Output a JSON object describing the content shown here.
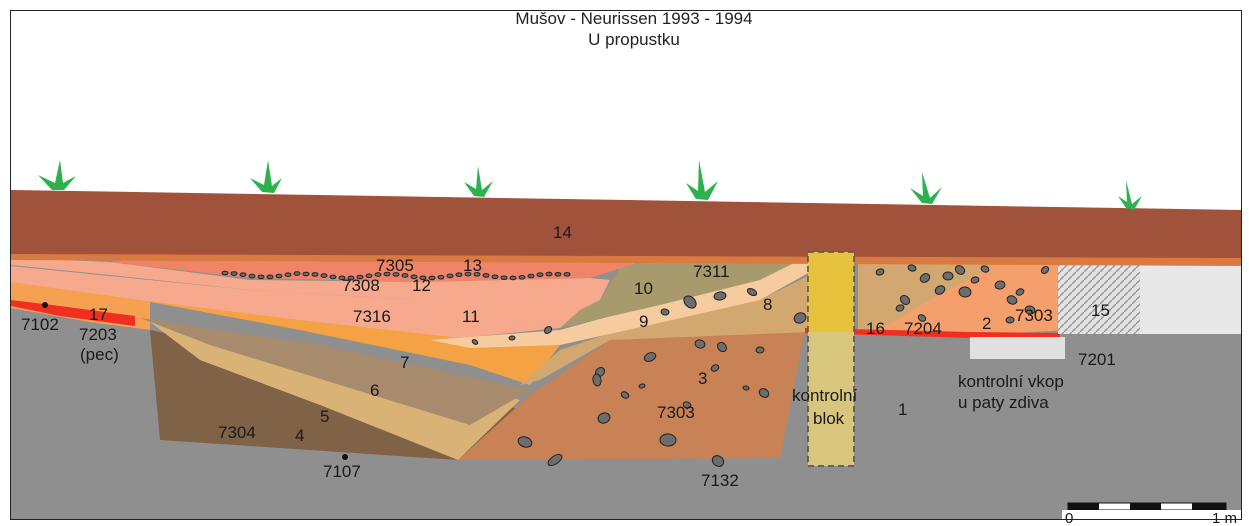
{
  "title": {
    "line1": "Mušov - Neurissen 1993 - 1994",
    "line2": "U propustku"
  },
  "colors": {
    "topsoil": "#a0523a",
    "subsoil": "#8f8f8f",
    "layer_7": "#f4a243",
    "layer_6": "#a88a6c",
    "layer_5": "#d9b275",
    "layer_4": "#806347",
    "layer_3": "#c98255",
    "layer_8": "#d3a870",
    "layer_9": "#f6cc9e",
    "layer_10": "#a79a6c",
    "layer_11": "#f6a98d",
    "layer_12": "#ef8468",
    "layer_2": "#f5a06c",
    "control_block": "#d8c67c",
    "wall": "#e0e0e0",
    "burnt": "#ee2f22",
    "grass": "#2db14f"
  },
  "labels": {
    "l14": "14",
    "l7305": "7305",
    "l13": "13",
    "l7308": "7308",
    "l12": "12",
    "l7311": "7311",
    "l10": "10",
    "l7316": "7316",
    "l11": "11",
    "l9": "9",
    "l8": "8",
    "l17": "17",
    "l7102": "7102",
    "l7203": "7203",
    "lpec": "(pec)",
    "l7": "7",
    "l6": "6",
    "l5": "5",
    "l4": "4",
    "l7304": "7304",
    "l7107": "7107",
    "l3": "3",
    "l7303a": "7303",
    "l7132": "7132",
    "kontrolni": "kontrolní",
    "blok": "blok",
    "l1": "1",
    "l16": "16",
    "l7204": "7204",
    "l2": "2",
    "l7303b": "7303",
    "l15": "15",
    "l7201": "7201",
    "vkop1": "kontrolní vkop",
    "vkop2": "u paty zdiva"
  },
  "scale_bar": {
    "start": "0",
    "end": "1 m"
  }
}
